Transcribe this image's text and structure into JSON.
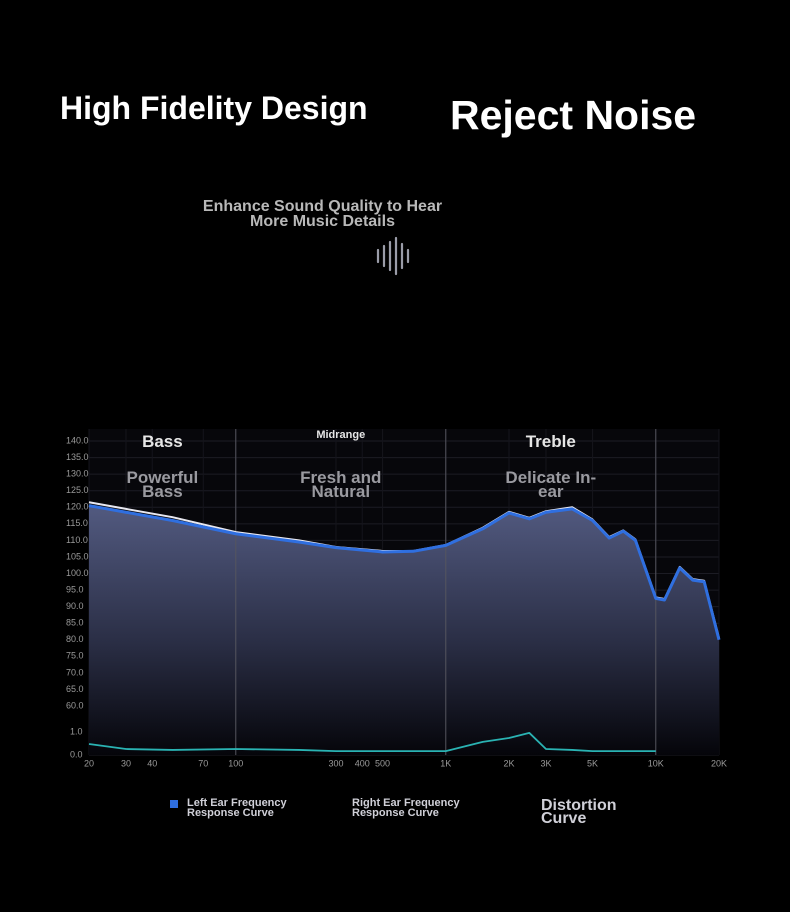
{
  "header": {
    "left_title": "High Fidelity Design",
    "right_title": "Reject Noise",
    "tagline": "Enhance Sound Quality to Hear More Music Details"
  },
  "chart_data": {
    "type": "line",
    "x": [
      20,
      30,
      50,
      100,
      200,
      300,
      500,
      700,
      1000,
      1500,
      2000,
      2500,
      3000,
      4000,
      5000,
      6000,
      7000,
      8000,
      10000,
      11000,
      13000,
      15000,
      17000,
      20000
    ],
    "series": [
      {
        "name": "Left Ear Frequency Response Curve",
        "color": "#2f6fe0",
        "values": [
          120.5,
          118.5,
          116,
          112,
          109.5,
          107.8,
          106.5,
          106.7,
          108.5,
          113.5,
          118.3,
          116.5,
          118.5,
          119.5,
          116,
          110.7,
          112.8,
          110,
          92.5,
          92,
          101.7,
          98,
          97.5,
          80
        ]
      },
      {
        "name": "Right Ear Frequency Response Curve",
        "color": "#e8e8f0",
        "values": [
          121.5,
          119.5,
          117,
          112.5,
          110,
          108,
          106.8,
          106.8,
          108.6,
          113.8,
          118.6,
          116.8,
          118.8,
          120,
          116.3,
          111,
          113,
          110.3,
          92.8,
          92.3,
          102,
          98.3,
          97.8,
          80.5
        ]
      },
      {
        "name": "Distortion Curve",
        "color": "#2ab3b3",
        "axis": "y2",
        "values": [
          0.48,
          0.26,
          0.22,
          0.26,
          0.22,
          0.17,
          0.17,
          0.17,
          0.17,
          0.57,
          0.74,
          0.96,
          0.26,
          0.22,
          0.17,
          0.17,
          0.17,
          0.17,
          0.17,
          null,
          null,
          null,
          null,
          null
        ]
      }
    ],
    "xscale": "log",
    "xlim": [
      20,
      20000
    ],
    "xticks": [
      20,
      30,
      40,
      70,
      100,
      300,
      400,
      500,
      {
        "value": 1000,
        "label": "1K"
      },
      {
        "value": 2000,
        "label": "2K"
      },
      {
        "value": 3000,
        "label": "3K"
      },
      {
        "value": 5000,
        "label": "5K"
      },
      {
        "value": 10000,
        "label": "10K"
      },
      {
        "value": 20000,
        "label": "20K"
      }
    ],
    "ylim": [
      60,
      140
    ],
    "yticks": [
      {
        "value": 60,
        "label": "60.0"
      },
      {
        "value": 65,
        "label": "65.0"
      },
      {
        "value": 70,
        "label": "70.0"
      },
      {
        "value": 75,
        "label": "75.0"
      },
      {
        "value": 80,
        "label": "80.0"
      },
      {
        "value": 85,
        "label": "85.0"
      },
      {
        "value": 90,
        "label": "90.0"
      },
      {
        "value": 95,
        "label": "95.0"
      },
      {
        "value": 100,
        "label": "100.0"
      },
      {
        "value": 105,
        "label": "105.0"
      },
      {
        "value": 110,
        "label": "110.0"
      },
      {
        "value": 115,
        "label": "115.0"
      },
      {
        "value": 120,
        "label": "120.0"
      },
      {
        "value": 125,
        "label": "125.0"
      },
      {
        "value": 130,
        "label": "130.0"
      },
      {
        "value": 135,
        "label": "135.0"
      },
      {
        "value": 140,
        "label": "140.0"
      }
    ],
    "y2lim": [
      0,
      1
    ],
    "y2ticks": [
      {
        "value": 0,
        "label": "0.0"
      },
      {
        "value": 1,
        "label": "1.0"
      }
    ],
    "grid": true,
    "legend": "bottom",
    "dividers": [
      100,
      1000,
      10000
    ],
    "regions": [
      {
        "label": "Bass",
        "description": "Powerful Bass"
      },
      {
        "label": "Midrange",
        "description": "Fresh and Natural"
      },
      {
        "label": "Treble",
        "description": "Delicate In-ear"
      }
    ]
  }
}
